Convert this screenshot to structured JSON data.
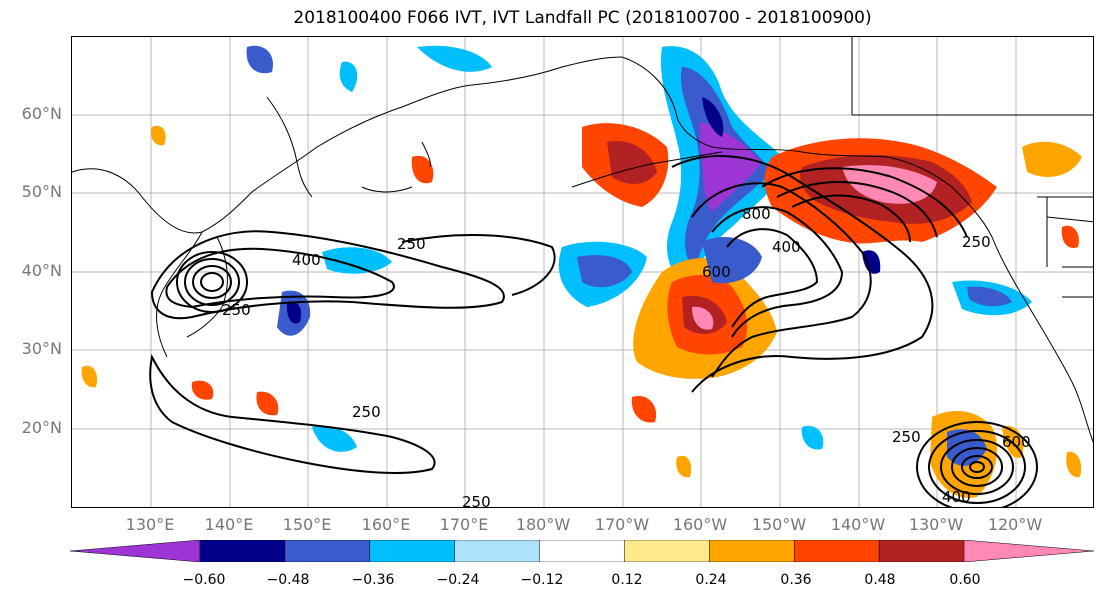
{
  "title": "2018100400 F066 IVT, IVT Landfall PC (2018100700 - 2018100900)",
  "lat_labels": [
    "60°N",
    "50°N",
    "40°N",
    "30°N",
    "20°N"
  ],
  "lon_labels": [
    "130°E",
    "140°E",
    "150°E",
    "160°E",
    "170°E",
    "180°W",
    "170°W",
    "160°W",
    "150°W",
    "140°W",
    "130°W",
    "120°W"
  ],
  "contour_labels": [
    "250",
    "400",
    "250",
    "250",
    "800",
    "400",
    "250",
    "600",
    "250",
    "400",
    "600",
    "250"
  ],
  "colorbar": {
    "colors": [
      "#9c35d4",
      "#00008b",
      "#3a5bcc",
      "#00bfff",
      "#aee2fb",
      "#ffffff",
      "#ffe98a",
      "#ffa500",
      "#ff4500",
      "#b22222",
      "#ff88b5"
    ],
    "ticks": [
      "−0.60",
      "−0.48",
      "−0.36",
      "−0.24",
      "−0.12",
      "0.12",
      "0.24",
      "0.36",
      "0.48",
      "0.60"
    ]
  }
}
